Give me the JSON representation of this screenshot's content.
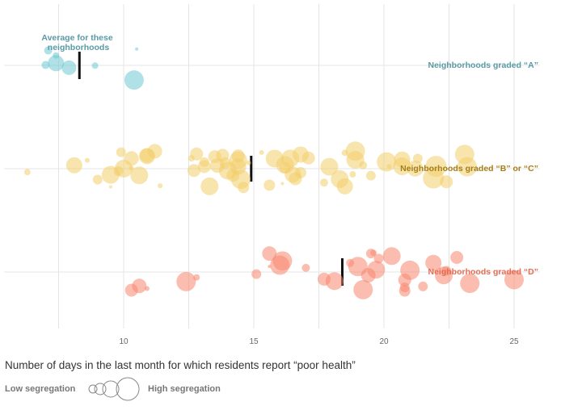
{
  "chart_data": {
    "type": "scatter",
    "xlabel": "Number of days in the last month for which residents report “poor health”",
    "xlim": [
      5.5,
      26
    ],
    "xticks": [
      10,
      15,
      20,
      25
    ],
    "grid": true,
    "annotation": {
      "lines": [
        "Average for these",
        "neighborhoods"
      ],
      "color": "#5a9aa5"
    },
    "legend": {
      "low_label": "Low segregation",
      "high_label": "High segregation",
      "placement": "bottom-left"
    },
    "groups": [
      {
        "name": "Neighborhoods graded “A”",
        "color": "#6dc9d3",
        "label_color": "#5a9aa5",
        "average": 8.3,
        "points": [
          {
            "x": 7.0,
            "r": 5
          },
          {
            "x": 7.9,
            "r": 9
          },
          {
            "x": 7.1,
            "r": 5
          },
          {
            "x": 7.4,
            "r": 4
          },
          {
            "x": 7.4,
            "r": 10
          },
          {
            "x": 8.9,
            "r": 4
          },
          {
            "x": 10.5,
            "r": 2
          },
          {
            "x": 10.4,
            "r": 12
          }
        ]
      },
      {
        "name": "Neighborhoods graded “B” or “C”",
        "color": "#f2cd6a",
        "label_color": "#a47e18",
        "average": 14.9,
        "points": [
          {
            "x": 6.3,
            "r": 4
          },
          {
            "x": 8.1,
            "r": 10
          },
          {
            "x": 8.6,
            "r": 3
          },
          {
            "x": 9.0,
            "r": 6
          },
          {
            "x": 9.5,
            "r": 11
          },
          {
            "x": 9.9,
            "r": 6
          },
          {
            "x": 10.0,
            "r": 11
          },
          {
            "x": 10.3,
            "r": 9
          },
          {
            "x": 10.6,
            "r": 11
          },
          {
            "x": 10.9,
            "r": 9
          },
          {
            "x": 9.8,
            "r": 6
          },
          {
            "x": 10.3,
            "r": 3
          },
          {
            "x": 10.9,
            "r": 10
          },
          {
            "x": 11.2,
            "r": 9
          },
          {
            "x": 11.4,
            "r": 3
          },
          {
            "x": 9.5,
            "r": 2
          },
          {
            "x": 12.8,
            "r": 8
          },
          {
            "x": 13.1,
            "r": 8
          },
          {
            "x": 13.3,
            "r": 11
          },
          {
            "x": 13.5,
            "r": 8
          },
          {
            "x": 13.6,
            "r": 9
          },
          {
            "x": 14.0,
            "r": 11
          },
          {
            "x": 14.2,
            "r": 8
          },
          {
            "x": 14.4,
            "r": 11
          },
          {
            "x": 14.4,
            "r": 8
          },
          {
            "x": 14.6,
            "r": 7
          },
          {
            "x": 14.4,
            "r": 10
          },
          {
            "x": 12.6,
            "r": 4
          },
          {
            "x": 12.7,
            "r": 8
          },
          {
            "x": 13.1,
            "r": 6
          },
          {
            "x": 13.8,
            "r": 8
          },
          {
            "x": 14.5,
            "r": 12
          },
          {
            "x": 13.9,
            "r": 7
          },
          {
            "x": 14.8,
            "r": 3
          },
          {
            "x": 15.3,
            "r": 3
          },
          {
            "x": 15.6,
            "r": 7
          },
          {
            "x": 15.8,
            "r": 11
          },
          {
            "x": 16.1,
            "r": 2
          },
          {
            "x": 16.2,
            "r": 7
          },
          {
            "x": 16.4,
            "r": 11
          },
          {
            "x": 16.8,
            "r": 7
          },
          {
            "x": 16.2,
            "r": 11
          },
          {
            "x": 16.6,
            "r": 8
          },
          {
            "x": 16.5,
            "r": 10
          },
          {
            "x": 16.8,
            "r": 10
          },
          {
            "x": 17.1,
            "r": 8
          },
          {
            "x": 17.9,
            "r": 11
          },
          {
            "x": 18.5,
            "r": 4
          },
          {
            "x": 18.9,
            "r": 12
          },
          {
            "x": 19.2,
            "r": 5
          },
          {
            "x": 19.5,
            "r": 6
          },
          {
            "x": 18.8,
            "r": 4
          },
          {
            "x": 18.5,
            "r": 10
          },
          {
            "x": 20.1,
            "r": 12
          },
          {
            "x": 20.7,
            "r": 11
          },
          {
            "x": 21.2,
            "r": 10
          },
          {
            "x": 22.0,
            "r": 13
          },
          {
            "x": 22.4,
            "r": 8
          },
          {
            "x": 23.2,
            "r": 12
          },
          {
            "x": 20.2,
            "r": 3
          },
          {
            "x": 20.7,
            "r": 10
          },
          {
            "x": 21.3,
            "r": 6
          },
          {
            "x": 21.9,
            "r": 13
          },
          {
            "x": 23.1,
            "r": 12
          },
          {
            "x": 18.9,
            "r": 11
          },
          {
            "x": 18.3,
            "r": 11
          },
          {
            "x": 17.7,
            "r": 5
          }
        ]
      },
      {
        "name": "Neighborhoods graded “D”",
        "color": "#f7866d",
        "label_color": "#e36e54",
        "average": 18.4,
        "points": [
          {
            "x": 10.3,
            "r": 8
          },
          {
            "x": 10.9,
            "r": 3
          },
          {
            "x": 10.6,
            "r": 9
          },
          {
            "x": 12.4,
            "r": 12
          },
          {
            "x": 12.8,
            "r": 4
          },
          {
            "x": 15.1,
            "r": 6
          },
          {
            "x": 15.6,
            "r": 9
          },
          {
            "x": 16.0,
            "r": 12
          },
          {
            "x": 15.6,
            "r": 2
          },
          {
            "x": 16.1,
            "r": 12
          },
          {
            "x": 17.0,
            "r": 5
          },
          {
            "x": 17.7,
            "r": 8
          },
          {
            "x": 18.1,
            "r": 11
          },
          {
            "x": 18.7,
            "r": 5
          },
          {
            "x": 19.2,
            "r": 12
          },
          {
            "x": 19.6,
            "r": 4
          },
          {
            "x": 19.0,
            "r": 12
          },
          {
            "x": 19.4,
            "r": 9
          },
          {
            "x": 19.7,
            "r": 11
          },
          {
            "x": 20.3,
            "r": 11
          },
          {
            "x": 20.8,
            "r": 7
          },
          {
            "x": 21.0,
            "r": 12
          },
          {
            "x": 21.5,
            "r": 6
          },
          {
            "x": 22.3,
            "r": 11
          },
          {
            "x": 22.4,
            "r": 6
          },
          {
            "x": 22.8,
            "r": 8
          },
          {
            "x": 23.3,
            "r": 12
          },
          {
            "x": 20.8,
            "r": 6
          },
          {
            "x": 21.9,
            "r": 10
          },
          {
            "x": 19.5,
            "r": 6
          },
          {
            "x": 19.8,
            "r": 6
          },
          {
            "x": 20.8,
            "r": 8
          },
          {
            "x": 25.0,
            "r": 12
          }
        ]
      }
    ]
  }
}
